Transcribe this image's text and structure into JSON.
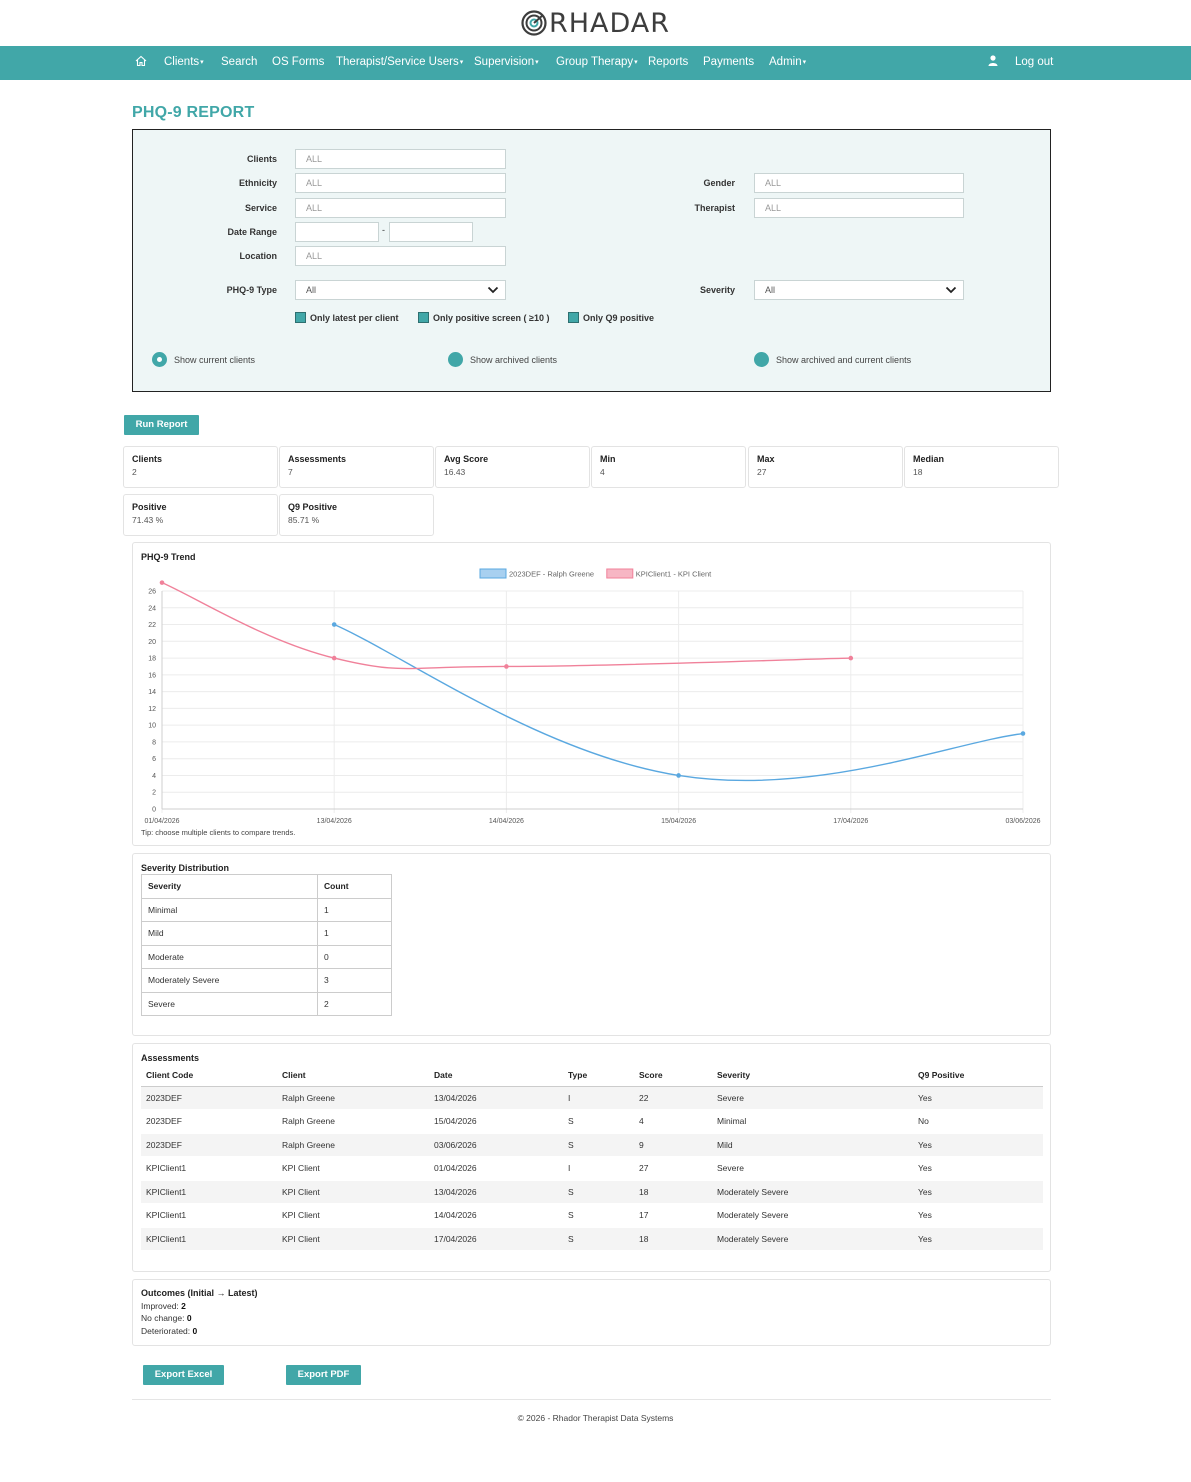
{
  "brand": {
    "name": "RHADAR",
    "icon": "radar-logo-icon"
  },
  "nav": {
    "home_icon": "home-icon",
    "items": [
      {
        "label": "Clients",
        "dropdown": true
      },
      {
        "label": "Search",
        "dropdown": false
      },
      {
        "label": "OS Forms",
        "dropdown": false
      },
      {
        "label": "Therapist/Service Users",
        "dropdown": true
      },
      {
        "label": "Supervision",
        "dropdown": true
      },
      {
        "label": "Group Therapy",
        "dropdown": true
      },
      {
        "label": "Reports",
        "dropdown": false
      },
      {
        "label": "Payments",
        "dropdown": false
      },
      {
        "label": "Admin",
        "dropdown": true
      }
    ],
    "user_icon": "user-icon",
    "logout": "Log out",
    "bg_color": "#41a7a8"
  },
  "page_title": "PHQ-9 REPORT",
  "filters": {
    "clients_label": "Clients",
    "clients_placeholder": "ALL",
    "ethnicity_label": "Ethnicity",
    "ethnicity_placeholder": "ALL",
    "service_label": "Service",
    "service_placeholder": "ALL",
    "date_range_label": "Date Range",
    "date_sep": "-",
    "location_label": "Location",
    "location_placeholder": "ALL",
    "gender_label": "Gender",
    "gender_placeholder": "ALL",
    "therapist_label": "Therapist",
    "therapist_placeholder": "ALL",
    "phq_type_label": "PHQ-9 Type",
    "phq_type_value": "All",
    "severity_label": "Severity",
    "severity_value": "All",
    "checkboxes": [
      "Only latest per client",
      "Only positive screen ( ≥10 )",
      "Only Q9 positive"
    ],
    "radios": [
      "Show current clients",
      "Show archived clients",
      "Show archived and current clients"
    ],
    "radio_selected": 0
  },
  "run_report": "Run Report",
  "stats": [
    {
      "label": "Clients",
      "value": "2"
    },
    {
      "label": "Assessments",
      "value": "7"
    },
    {
      "label": "Avg Score",
      "value": "16.43"
    },
    {
      "label": "Min",
      "value": "4"
    },
    {
      "label": "Max",
      "value": "27"
    },
    {
      "label": "Median",
      "value": "18"
    },
    {
      "label": "Positive",
      "value": "71.43 %"
    },
    {
      "label": "Q9 Positive",
      "value": "85.71 %"
    }
  ],
  "trend": {
    "title": "PHQ-9 Trend",
    "tip": "Tip: choose multiple clients to compare trends."
  },
  "chart_data": {
    "type": "line",
    "categories": [
      "01/04/2026",
      "13/04/2026",
      "14/04/2026",
      "15/04/2026",
      "17/04/2026",
      "03/06/2026"
    ],
    "series": [
      {
        "name": "2023DEF - Ralph Greene",
        "color": "#5aa8e0",
        "fill": "#a8d0f0",
        "values": [
          null,
          22,
          null,
          4,
          null,
          9
        ]
      },
      {
        "name": "KPIClient1 - KPI Client",
        "color": "#f0819a",
        "fill": "#f7b6c4",
        "values": [
          27,
          18,
          17,
          null,
          18,
          null
        ]
      }
    ],
    "ylim": [
      0,
      26
    ],
    "yticks": [
      0,
      2,
      4,
      6,
      8,
      10,
      12,
      14,
      16,
      18,
      20,
      22,
      24,
      26
    ],
    "legend": "top-center",
    "grid": true
  },
  "severity": {
    "title": "Severity Distribution",
    "headers": [
      "Severity",
      "Count"
    ],
    "rows": [
      [
        "Minimal",
        "1"
      ],
      [
        "Mild",
        "1"
      ],
      [
        "Moderate",
        "0"
      ],
      [
        "Moderately Severe",
        "3"
      ],
      [
        "Severe",
        "2"
      ]
    ]
  },
  "assessments": {
    "title": "Assessments",
    "headers": [
      "Client Code",
      "Client",
      "Date",
      "Type",
      "Score",
      "Severity",
      "Q9 Positive"
    ],
    "rows": [
      [
        "2023DEF",
        "Ralph Greene",
        "13/04/2026",
        "I",
        "22",
        "Severe",
        "Yes"
      ],
      [
        "2023DEF",
        "Ralph Greene",
        "15/04/2026",
        "S",
        "4",
        "Minimal",
        "No"
      ],
      [
        "2023DEF",
        "Ralph Greene",
        "03/06/2026",
        "S",
        "9",
        "Mild",
        "Yes"
      ],
      [
        "KPIClient1",
        "KPI Client",
        "01/04/2026",
        "I",
        "27",
        "Severe",
        "Yes"
      ],
      [
        "KPIClient1",
        "KPI Client",
        "13/04/2026",
        "S",
        "18",
        "Moderately Severe",
        "Yes"
      ],
      [
        "KPIClient1",
        "KPI Client",
        "14/04/2026",
        "S",
        "17",
        "Moderately Severe",
        "Yes"
      ],
      [
        "KPIClient1",
        "KPI Client",
        "17/04/2026",
        "S",
        "18",
        "Moderately Severe",
        "Yes"
      ]
    ]
  },
  "outcomes": {
    "title": "Outcomes (Initial → Latest)",
    "improved_label": "Improved:",
    "improved": "2",
    "nochange_label": "No change:",
    "nochange": "0",
    "deteriorated_label": "Deteriorated:",
    "deteriorated": "0"
  },
  "export_excel": "Export Excel",
  "export_pdf": "Export PDF",
  "footer": "© 2026 - Rhador Therapist Data Systems"
}
